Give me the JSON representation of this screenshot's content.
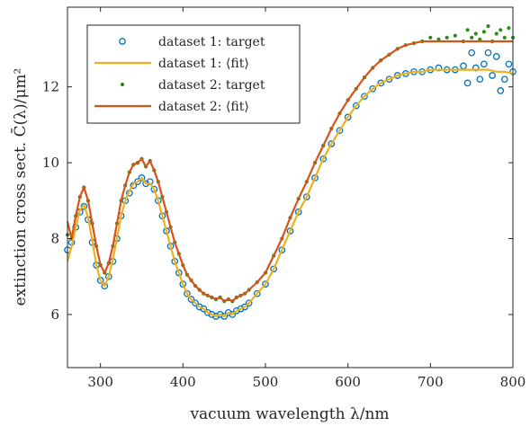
{
  "chart_data": {
    "type": "scatter",
    "title": "",
    "xlabel": "vacuum wavelength λ/nm",
    "ylabel": "extinction cross sect. C̄(λ)/μm²",
    "xlim": [
      260,
      800
    ],
    "ylim": [
      4.6,
      14.1
    ],
    "xticks": [
      300,
      400,
      500,
      600,
      700,
      800
    ],
    "yticks": [
      6,
      8,
      10,
      12
    ],
    "grid": false,
    "legend_position": "top-left",
    "series": [
      {
        "name": "dataset 1: target",
        "kind": "markers",
        "marker": "open-circle",
        "color": "#0072BD",
        "x": [
          260,
          265,
          270,
          275,
          280,
          285,
          290,
          295,
          300,
          305,
          310,
          315,
          320,
          325,
          330,
          335,
          340,
          345,
          350,
          355,
          360,
          365,
          370,
          375,
          380,
          385,
          390,
          395,
          400,
          405,
          410,
          415,
          420,
          425,
          430,
          435,
          440,
          445,
          450,
          455,
          460,
          465,
          470,
          475,
          480,
          490,
          500,
          510,
          520,
          530,
          540,
          550,
          560,
          570,
          580,
          590,
          600,
          610,
          620,
          630,
          640,
          650,
          660,
          670,
          680,
          690,
          700,
          710,
          720,
          730,
          740,
          745,
          750,
          755,
          760,
          765,
          770,
          775,
          780,
          785,
          790,
          795,
          800
        ],
        "y": [
          7.7,
          7.9,
          8.3,
          8.7,
          8.85,
          8.5,
          7.9,
          7.3,
          6.9,
          6.75,
          7.0,
          7.4,
          8.0,
          8.6,
          9.0,
          9.2,
          9.4,
          9.5,
          9.6,
          9.45,
          9.5,
          9.3,
          9.0,
          8.6,
          8.2,
          7.8,
          7.4,
          7.1,
          6.8,
          6.55,
          6.4,
          6.3,
          6.2,
          6.15,
          6.05,
          6.0,
          5.95,
          6.0,
          5.95,
          6.05,
          6.0,
          6.1,
          6.15,
          6.2,
          6.3,
          6.55,
          6.8,
          7.2,
          7.7,
          8.2,
          8.7,
          9.1,
          9.6,
          10.1,
          10.5,
          10.85,
          11.2,
          11.5,
          11.75,
          11.95,
          12.1,
          12.2,
          12.3,
          12.35,
          12.4,
          12.4,
          12.45,
          12.5,
          12.45,
          12.45,
          12.55,
          12.1,
          12.9,
          12.5,
          12.2,
          12.6,
          12.9,
          12.3,
          12.8,
          11.9,
          12.2,
          12.6,
          12.4
        ]
      },
      {
        "name": "dataset 1: ⟨fit⟩",
        "kind": "line",
        "color": "#EDB120",
        "x": [
          260,
          265,
          270,
          275,
          280,
          285,
          290,
          295,
          300,
          305,
          310,
          315,
          320,
          325,
          330,
          335,
          340,
          345,
          350,
          355,
          360,
          365,
          370,
          375,
          380,
          385,
          390,
          395,
          400,
          405,
          410,
          415,
          420,
          425,
          430,
          435,
          440,
          445,
          450,
          455,
          460,
          465,
          470,
          475,
          480,
          490,
          500,
          510,
          520,
          530,
          540,
          550,
          560,
          570,
          580,
          590,
          600,
          610,
          620,
          630,
          640,
          650,
          660,
          670,
          680,
          690,
          700,
          710,
          720,
          730,
          740,
          750,
          760,
          770,
          780,
          790,
          800
        ],
        "y": [
          7.4,
          7.8,
          8.3,
          8.75,
          8.9,
          8.55,
          7.95,
          7.3,
          6.9,
          6.75,
          7.0,
          7.45,
          8.0,
          8.6,
          9.0,
          9.25,
          9.45,
          9.5,
          9.6,
          9.45,
          9.45,
          9.3,
          9.0,
          8.6,
          8.2,
          7.8,
          7.4,
          7.1,
          6.8,
          6.55,
          6.4,
          6.3,
          6.2,
          6.15,
          6.05,
          6.0,
          5.95,
          6.0,
          5.95,
          6.05,
          6.0,
          6.1,
          6.15,
          6.2,
          6.3,
          6.55,
          6.8,
          7.2,
          7.7,
          8.2,
          8.7,
          9.1,
          9.6,
          10.1,
          10.5,
          10.85,
          11.2,
          11.5,
          11.75,
          11.95,
          12.1,
          12.2,
          12.3,
          12.35,
          12.4,
          12.4,
          12.45,
          12.45,
          12.45,
          12.45,
          12.45,
          12.45,
          12.45,
          12.45,
          12.4,
          12.4,
          12.35
        ]
      },
      {
        "name": "dataset 2: target",
        "kind": "markers",
        "marker": "dot",
        "color": "#2E8B1F",
        "x": [
          260,
          265,
          270,
          275,
          280,
          285,
          290,
          295,
          300,
          305,
          310,
          315,
          320,
          325,
          330,
          335,
          340,
          345,
          350,
          355,
          360,
          365,
          370,
          375,
          380,
          385,
          390,
          395,
          400,
          405,
          410,
          415,
          420,
          425,
          430,
          435,
          440,
          445,
          450,
          455,
          460,
          465,
          470,
          475,
          480,
          490,
          500,
          510,
          520,
          530,
          540,
          550,
          560,
          570,
          580,
          590,
          600,
          610,
          620,
          630,
          640,
          650,
          660,
          670,
          680,
          690,
          700,
          710,
          720,
          730,
          740,
          745,
          750,
          755,
          760,
          765,
          770,
          775,
          780,
          785,
          790,
          795,
          800
        ],
        "y": [
          8.1,
          8.0,
          8.6,
          9.1,
          9.35,
          9.0,
          8.4,
          7.8,
          7.3,
          7.1,
          7.35,
          7.8,
          8.4,
          9.0,
          9.4,
          9.75,
          9.95,
          10.0,
          10.1,
          9.9,
          10.05,
          9.8,
          9.5,
          9.1,
          8.7,
          8.3,
          7.9,
          7.6,
          7.3,
          7.05,
          6.9,
          6.75,
          6.65,
          6.55,
          6.5,
          6.45,
          6.4,
          6.45,
          6.35,
          6.4,
          6.35,
          6.45,
          6.5,
          6.55,
          6.65,
          6.85,
          7.1,
          7.55,
          8.0,
          8.55,
          9.05,
          9.5,
          10.0,
          10.45,
          10.9,
          11.3,
          11.65,
          11.95,
          12.25,
          12.5,
          12.7,
          12.85,
          13.0,
          13.1,
          13.15,
          13.2,
          13.3,
          13.25,
          13.3,
          13.35,
          13.2,
          13.5,
          13.3,
          13.4,
          13.25,
          13.45,
          13.6,
          13.2,
          13.4,
          13.5,
          13.3,
          13.55,
          13.3
        ]
      },
      {
        "name": "dataset 2: ⟨fit⟩",
        "kind": "line",
        "color": "#D95319",
        "x": [
          260,
          265,
          270,
          275,
          280,
          285,
          290,
          295,
          300,
          305,
          310,
          315,
          320,
          325,
          330,
          335,
          340,
          345,
          350,
          355,
          360,
          365,
          370,
          375,
          380,
          385,
          390,
          395,
          400,
          405,
          410,
          415,
          420,
          425,
          430,
          435,
          440,
          445,
          450,
          455,
          460,
          465,
          470,
          475,
          480,
          490,
          500,
          510,
          520,
          530,
          540,
          550,
          560,
          570,
          580,
          590,
          600,
          610,
          620,
          630,
          640,
          650,
          660,
          670,
          680,
          690,
          700,
          710,
          720,
          730,
          740,
          750,
          760,
          770,
          780,
          790,
          800
        ],
        "y": [
          8.45,
          8.0,
          8.6,
          9.1,
          9.35,
          9.0,
          8.4,
          7.8,
          7.3,
          7.1,
          7.35,
          7.8,
          8.4,
          9.0,
          9.4,
          9.75,
          9.95,
          10.0,
          10.1,
          9.9,
          10.05,
          9.8,
          9.5,
          9.1,
          8.7,
          8.3,
          7.9,
          7.6,
          7.3,
          7.05,
          6.9,
          6.75,
          6.65,
          6.55,
          6.5,
          6.45,
          6.4,
          6.45,
          6.35,
          6.4,
          6.35,
          6.45,
          6.5,
          6.55,
          6.65,
          6.85,
          7.1,
          7.55,
          8.0,
          8.55,
          9.05,
          9.5,
          10.0,
          10.45,
          10.9,
          11.3,
          11.65,
          11.95,
          12.25,
          12.5,
          12.7,
          12.85,
          13.0,
          13.1,
          13.15,
          13.2,
          13.2,
          13.2,
          13.2,
          13.2,
          13.2,
          13.2,
          13.2,
          13.2,
          13.2,
          13.2,
          13.2
        ]
      }
    ]
  }
}
